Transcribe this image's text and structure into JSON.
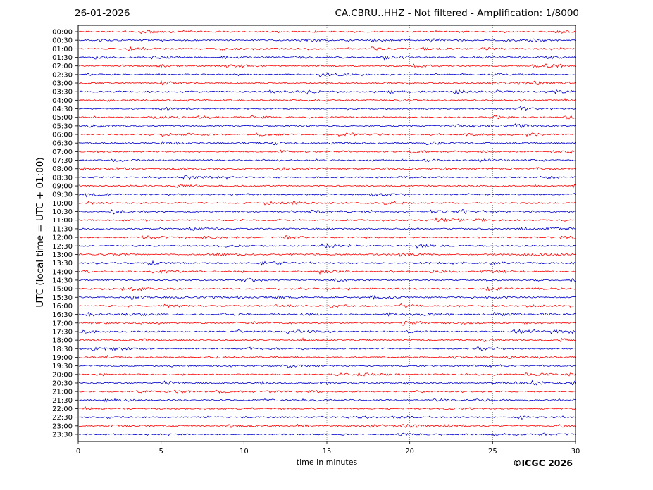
{
  "header": {
    "date": "26-01-2026",
    "station_title": "CA.CBRU..HHZ - Not filtered - Amplification: 1/8000"
  },
  "footer": {
    "copyright": "©ICGC 2026"
  },
  "chart_data": {
    "type": "line",
    "title": "CA.CBRU..HHZ - Not filtered - Amplification: 1/8000",
    "xlabel": "time in minutes",
    "ylabel": "UTC (local time = UTC + 01:00)",
    "xlim": [
      0,
      30
    ],
    "x_ticks": [
      0,
      5,
      10,
      15,
      20,
      25,
      30
    ],
    "grid": "vertical dotted at 5-minute intervals",
    "row_labels": [
      "00:00",
      "00:30",
      "01:00",
      "01:30",
      "02:00",
      "02:30",
      "03:00",
      "03:30",
      "04:00",
      "04:30",
      "05:00",
      "05:30",
      "06:00",
      "06:30",
      "07:00",
      "07:30",
      "08:00",
      "08:30",
      "09:00",
      "09:30",
      "10:00",
      "10:30",
      "11:00",
      "11:30",
      "12:00",
      "12:30",
      "13:00",
      "13:30",
      "14:00",
      "14:30",
      "15:00",
      "15:30",
      "16:00",
      "16:30",
      "17:00",
      "17:30",
      "18:00",
      "18:30",
      "19:00",
      "19:30",
      "20:00",
      "20:30",
      "21:00",
      "21:30",
      "22:00",
      "22:30",
      "23:00",
      "23:30"
    ],
    "trace_colors": [
      "#ff0000",
      "#0000cc"
    ],
    "trace_color_rule": "alternating: on-the-hour rows red, half-hour rows blue"
  }
}
